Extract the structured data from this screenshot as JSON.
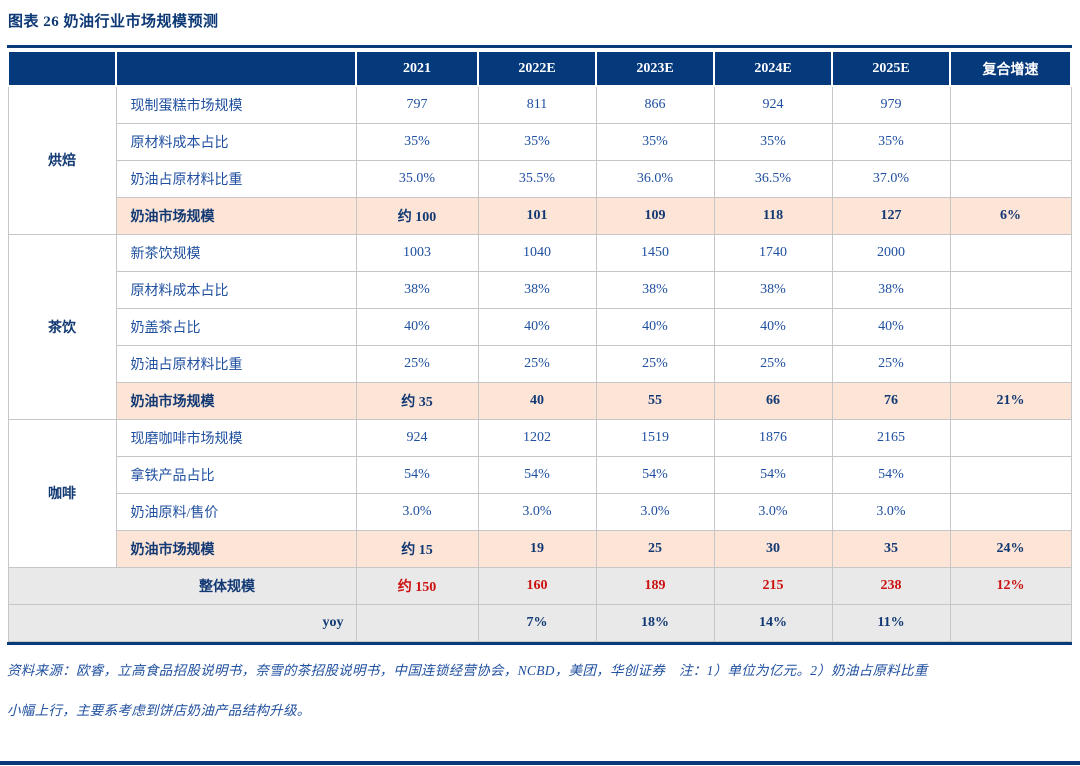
{
  "page": {
    "title": "图表 26 奶油行业市场规模预测"
  },
  "chart_data": {
    "type": "table",
    "title": "奶油行业市场规模预测",
    "unit_note": "单位为亿元",
    "columns": [
      "2021",
      "2022E",
      "2023E",
      "2024E",
      "2025E",
      "复合增速"
    ],
    "groups": [
      {
        "category": "烘焙",
        "rows": [
          {
            "label": "现制蛋糕市场规模",
            "values": [
              "797",
              "811",
              "866",
              "924",
              "979",
              ""
            ],
            "highlight": false
          },
          {
            "label": "原材料成本占比",
            "values": [
              "35%",
              "35%",
              "35%",
              "35%",
              "35%",
              ""
            ],
            "highlight": false
          },
          {
            "label": "奶油占原材料比重",
            "values": [
              "35.0%",
              "35.5%",
              "36.0%",
              "36.5%",
              "37.0%",
              ""
            ],
            "highlight": false
          },
          {
            "label": "奶油市场规模",
            "values": [
              "约 100",
              "101",
              "109",
              "118",
              "127",
              "6%"
            ],
            "highlight": true
          }
        ]
      },
      {
        "category": "茶饮",
        "rows": [
          {
            "label": "新茶饮规模",
            "values": [
              "1003",
              "1040",
              "1450",
              "1740",
              "2000",
              ""
            ],
            "highlight": false
          },
          {
            "label": "原材料成本占比",
            "values": [
              "38%",
              "38%",
              "38%",
              "38%",
              "38%",
              ""
            ],
            "highlight": false
          },
          {
            "label": "奶盖茶占比",
            "values": [
              "40%",
              "40%",
              "40%",
              "40%",
              "40%",
              ""
            ],
            "highlight": false
          },
          {
            "label": "奶油占原材料比重",
            "values": [
              "25%",
              "25%",
              "25%",
              "25%",
              "25%",
              ""
            ],
            "highlight": false
          },
          {
            "label": "奶油市场规模",
            "values": [
              "约 35",
              "40",
              "55",
              "66",
              "76",
              "21%"
            ],
            "highlight": true
          }
        ]
      },
      {
        "category": "咖啡",
        "rows": [
          {
            "label": "现磨咖啡市场规模",
            "values": [
              "924",
              "1202",
              "1519",
              "1876",
              "2165",
              ""
            ],
            "highlight": false
          },
          {
            "label": "拿铁产品占比",
            "values": [
              "54%",
              "54%",
              "54%",
              "54%",
              "54%",
              ""
            ],
            "highlight": false
          },
          {
            "label": "奶油原料/售价",
            "values": [
              "3.0%",
              "3.0%",
              "3.0%",
              "3.0%",
              "3.0%",
              ""
            ],
            "highlight": false
          },
          {
            "label": "奶油市场规模",
            "values": [
              "约 15",
              "19",
              "25",
              "30",
              "35",
              "24%"
            ],
            "highlight": true
          }
        ]
      }
    ],
    "summary_rows": [
      {
        "label": "整体规模",
        "style": "total",
        "values": [
          "约 150",
          "160",
          "189",
          "215",
          "238",
          "12%"
        ]
      },
      {
        "label": "yoy",
        "style": "yoy",
        "values": [
          "",
          "7%",
          "18%",
          "14%",
          "11%",
          ""
        ]
      }
    ]
  },
  "footer": {
    "line1": "资料来源：欧睿，立高食品招股说明书，奈雪的茶招股说明书，中国连锁经营协会，NCBD，美团，华创证券　注：1）单位为亿元。2）奶油占原料比重",
    "line2": "小幅上行，主要系考虑到饼店奶油产品结构升级。"
  },
  "colors": {
    "header_bg": "#043a7c",
    "body_text": "#1f4f9f",
    "bold_text": "#123973",
    "highlight_bg": "#fce4d6",
    "summary_bg": "#e9e9e9",
    "total_value_red": "#cc1111",
    "grid_line": "#c6c6c6",
    "thick_rule": "#0a3a7a"
  }
}
